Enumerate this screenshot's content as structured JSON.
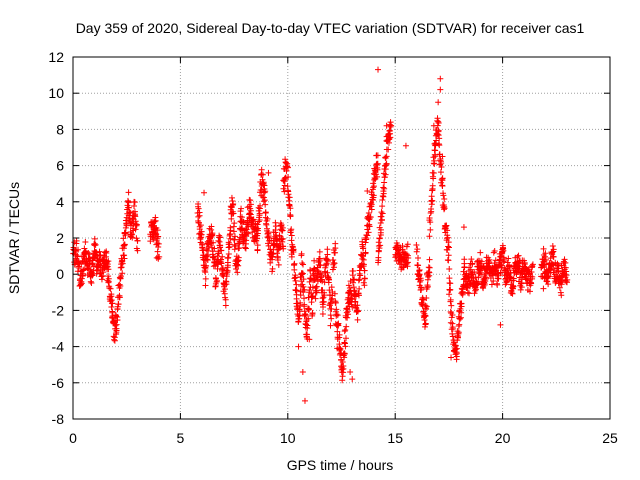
{
  "chart_data": {
    "type": "scatter",
    "title": "Day 359 of 2020, Sidereal Day-to-day VTEC variation (SDTVAR) for receiver cas1",
    "xlabel": "GPS time / hours",
    "ylabel": "SDTVAR / TECUs",
    "xlim": [
      0,
      25
    ],
    "ylim": [
      -8,
      12
    ],
    "xticks": [
      0,
      5,
      10,
      15,
      20,
      25
    ],
    "yticks": [
      -8,
      -6,
      -4,
      -2,
      0,
      2,
      4,
      6,
      8,
      10,
      12
    ],
    "grid": true,
    "marker": "+",
    "color": "#ff0000",
    "series": [
      {
        "name": "SDTVAR",
        "segments": [
          {
            "x0": 0.0,
            "x1": 1.6,
            "y": [
              1.6,
              0.8,
              1.4,
              0.2,
              -0.3,
              0.6,
              1.2,
              0.4,
              0.9,
              -0.2,
              0.7,
              1.5,
              0.3,
              0.8,
              0.1,
              0.6,
              1.0,
              0.2
            ]
          },
          {
            "x0": 1.6,
            "x1": 2.4,
            "y": [
              0.5,
              -0.4,
              -1.2,
              -2.0,
              -2.8,
              -3.3,
              -2.6,
              -1.5,
              -0.5,
              0.4,
              1.3,
              2.0
            ]
          },
          {
            "x0": 2.4,
            "x1": 3.0,
            "y": [
              1.5,
              2.4,
              3.2,
              4.2,
              3.0,
              2.2,
              2.8,
              3.6,
              2.6,
              1.6
            ]
          },
          {
            "x0": 3.6,
            "x1": 4.0,
            "y": [
              2.3,
              2.5,
              2.6,
              2.2,
              1.0
            ]
          },
          {
            "x0": 5.8,
            "x1": 6.8,
            "y": [
              3.8,
              3.0,
              2.2,
              1.4,
              0.6,
              0.1,
              1.0,
              1.8,
              2.4,
              1.6,
              0.8,
              -0.2,
              0.5,
              1.4
            ]
          },
          {
            "x0": 6.8,
            "x1": 7.8,
            "y": [
              2.0,
              1.2,
              0.4,
              -0.6,
              -1.2,
              0.2,
              1.6,
              3.0,
              4.2,
              2.6,
              1.0,
              0.4,
              1.8,
              2.6
            ]
          },
          {
            "x0": 7.8,
            "x1": 8.6,
            "y": [
              3.2,
              2.4,
              2.0,
              3.0,
              3.6,
              2.6,
              2.2,
              1.8
            ]
          },
          {
            "x0": 8.6,
            "x1": 9.3,
            "y": [
              2.4,
              4.0,
              5.4,
              4.6,
              3.2,
              2.0,
              1.2,
              0.6
            ]
          },
          {
            "x0": 9.3,
            "x1": 9.8,
            "y": [
              1.6,
              2.2,
              1.0,
              2.4,
              2.0
            ]
          },
          {
            "x0": 9.8,
            "x1": 10.2,
            "y": [
              4.8,
              5.6,
              6.0,
              4.4,
              3.0,
              1.4
            ]
          },
          {
            "x0": 10.2,
            "x1": 11.2,
            "y": [
              1.8,
              0.6,
              -0.4,
              -1.6,
              -2.6,
              -0.8,
              0.8,
              -1.2,
              -2.8,
              -3.2,
              -1.4,
              0.2,
              -1.8,
              -0.4
            ]
          },
          {
            "x0": 11.2,
            "x1": 12.2,
            "y": [
              0.4,
              -1.0,
              -0.2,
              1.2,
              -0.6,
              -1.8,
              0.4,
              1.0,
              -0.8,
              -2.4,
              0.6,
              1.6
            ]
          },
          {
            "x0": 12.2,
            "x1": 13.0,
            "y": [
              -1.6,
              -2.6,
              -3.4,
              -4.4,
              -5.6,
              -4.0,
              -2.6,
              -1.4,
              -0.8,
              -2.0
            ]
          },
          {
            "x0": 13.0,
            "x1": 13.6,
            "y": [
              0.6,
              -1.2,
              -2.2,
              0.2,
              1.4,
              -0.6
            ]
          },
          {
            "x0": 13.6,
            "x1": 14.2,
            "y": [
              1.4,
              2.6,
              3.4,
              4.4,
              5.6,
              6.2
            ]
          },
          {
            "x0": 14.2,
            "x1": 14.8,
            "y": [
              0.6,
              2.2,
              3.6,
              5.2,
              6.8,
              7.4,
              8.0
            ]
          },
          {
            "x0": 15.0,
            "x1": 15.6,
            "y": [
              1.4,
              0.8,
              1.0
            ]
          },
          {
            "x0": 16.0,
            "x1": 16.6,
            "y": [
              1.0,
              0.0,
              -0.8,
              -1.8,
              -2.6,
              -0.6,
              0.8
            ]
          },
          {
            "x0": 16.6,
            "x1": 17.5,
            "y": [
              2.6,
              4.2,
              6.0,
              7.8,
              8.2,
              6.4,
              5.0,
              3.4,
              2.0,
              1.0
            ]
          },
          {
            "x0": 17.5,
            "x1": 18.2,
            "y": [
              0.0,
              -2.0,
              -3.4,
              -4.4,
              -3.6,
              -2.4,
              -1.2,
              -0.2
            ]
          },
          {
            "x0": 18.2,
            "x1": 19.6,
            "y": [
              0.2,
              -0.6,
              -0.2,
              0.4,
              -0.8,
              0.1,
              0.6,
              -0.4,
              0.2,
              0.5,
              -0.2,
              0.3
            ]
          },
          {
            "x0": 19.6,
            "x1": 21.4,
            "y": [
              0.8,
              -0.2,
              0.6,
              1.0,
              -0.4,
              0.4,
              -0.9,
              0.2,
              0.7,
              -0.3,
              0.5,
              0.0,
              -0.6,
              0.3
            ]
          },
          {
            "x0": 21.8,
            "x1": 23.0,
            "y": [
              0.4,
              0.8,
              0.2,
              -0.4,
              0.6,
              0.9,
              -0.2,
              0.3,
              -0.8,
              0.1,
              0.5,
              -0.3
            ]
          }
        ],
        "points": [
          [
            14.2,
            11.3
          ],
          [
            17.1,
            10.8
          ],
          [
            17.1,
            10.2
          ],
          [
            17.0,
            9.5
          ],
          [
            14.6,
            8.2
          ],
          [
            14.6,
            7.6
          ],
          [
            15.5,
            7.1
          ],
          [
            16.8,
            8.2
          ],
          [
            17.2,
            6.5
          ],
          [
            9.1,
            5.6
          ],
          [
            13.7,
            4.6
          ],
          [
            10.5,
            -4.0
          ],
          [
            10.7,
            -5.4
          ],
          [
            10.8,
            -7.0
          ],
          [
            11.0,
            -3.6
          ],
          [
            13.0,
            -5.8
          ],
          [
            12.9,
            -5.4
          ],
          [
            19.9,
            -2.8
          ],
          [
            17.6,
            -4.6
          ],
          [
            12.3,
            -4.1
          ],
          [
            2.0,
            -3.3
          ],
          [
            3.9,
            0.9
          ],
          [
            6.1,
            4.5
          ],
          [
            15.3,
            0.8
          ],
          [
            18.2,
            2.6
          ],
          [
            21.9,
            -0.8
          ]
        ]
      }
    ]
  }
}
